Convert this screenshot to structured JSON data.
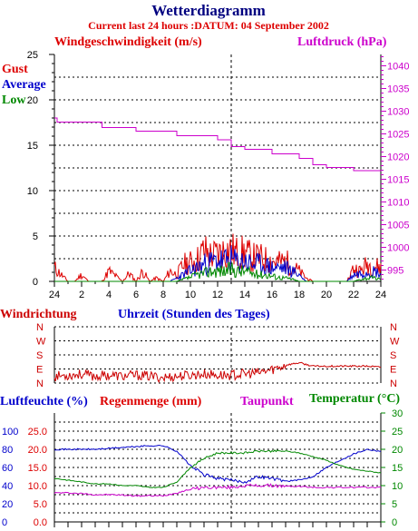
{
  "header": {
    "title": "Wetterdiagramm",
    "subtitle": "Current last 24 hours :DATUM: 04 September 2002"
  },
  "colors": {
    "gust": "#dd0000",
    "average": "#0000cc",
    "low": "#008800",
    "pressure": "#cc00cc",
    "direction": "#cc0000",
    "humidity": "#0000cc",
    "rain": "#dd0000",
    "dewpoint": "#cc00cc",
    "temperature": "#008800",
    "grid": "#000000"
  },
  "chart_data": [
    {
      "type": "line",
      "ylabel": "Windgeschwindigkeit (m/s)",
      "y2label": "Luftdruck (hPa)",
      "xlabel": "Uhrzeit (Stunden des Tages)",
      "legend": [
        "Gust",
        "Average",
        "Low"
      ],
      "ylim": [
        0,
        25
      ],
      "y2lim": [
        992.5,
        1042.5
      ],
      "yticks": [
        "0",
        "5",
        "10",
        "15",
        "20",
        "25"
      ],
      "y2ticks": [
        "995",
        "1000",
        "1005",
        "1010",
        "1015",
        "1020",
        "1025",
        "1030",
        "1035",
        "1040"
      ],
      "xticks": [
        "24",
        "2",
        "4",
        "6",
        "8",
        "10",
        "12",
        "14",
        "16",
        "18",
        "20",
        "22",
        "24"
      ],
      "x": [
        0,
        0.5,
        1,
        1.5,
        2,
        2.5,
        3,
        3.5,
        4,
        4.5,
        5,
        5.5,
        6,
        6.5,
        7,
        7.5,
        8,
        8.5,
        9,
        9.5,
        10,
        10.5,
        11,
        11.5,
        12,
        12.5,
        13,
        13.5,
        14,
        14.5,
        15,
        15.5,
        16,
        16.5,
        17,
        17.5,
        18,
        18.5,
        19,
        19.5,
        20,
        20.5,
        21,
        21.5,
        22,
        22.5,
        23,
        23.5,
        24
      ],
      "series": [
        {
          "name": "Gust",
          "values": [
            2,
            1,
            0,
            0,
            1,
            0,
            0,
            0,
            1.5,
            0.8,
            0,
            1.2,
            0,
            1.5,
            0,
            0.5,
            0,
            1.5,
            1,
            2.5,
            2.8,
            3.2,
            4.5,
            3.8,
            4,
            4.5,
            4.6,
            4,
            4.2,
            3.5,
            3.5,
            3.2,
            3,
            2.8,
            3,
            2.2,
            1.5,
            0.5,
            0,
            0,
            0,
            0,
            0,
            0,
            2,
            1.5,
            2.5,
            2.3,
            2
          ]
        },
        {
          "name": "Average",
          "values": [
            0,
            0,
            0,
            0,
            0,
            0,
            0,
            0,
            0,
            0,
            0,
            0,
            0,
            0,
            0,
            0,
            0,
            0,
            0.5,
            1,
            1.5,
            2,
            2.5,
            2.8,
            3,
            3,
            3.2,
            2.8,
            3,
            2.5,
            2.5,
            2.3,
            2,
            2,
            2,
            1.5,
            1,
            0,
            0,
            0,
            0,
            0,
            0,
            0,
            1,
            1.2,
            1.5,
            1.5,
            1.2
          ]
        },
        {
          "name": "Low",
          "values": [
            0,
            0,
            0,
            0,
            0,
            0,
            0,
            0,
            0,
            0,
            0,
            0,
            0,
            0,
            0,
            0,
            0,
            0,
            0,
            0.3,
            0.6,
            1,
            1.2,
            1.5,
            1.6,
            1.5,
            1.8,
            1.5,
            1.5,
            1.2,
            1,
            1,
            0.8,
            0.6,
            0.5,
            0.3,
            0,
            0,
            0,
            0,
            0,
            0,
            0,
            0,
            0,
            0.3,
            0.5,
            0.5,
            0.3
          ]
        },
        {
          "name": "Luftdruck",
          "axis": "y2",
          "x": [
            0,
            0.2,
            3.5,
            6,
            9,
            12,
            13,
            14,
            16,
            18,
            19,
            20,
            22,
            24
          ],
          "values": [
            1028.5,
            1027.6,
            1026.4,
            1025.6,
            1024.6,
            1023.7,
            1022.2,
            1021.6,
            1020.6,
            1019.6,
            1018.2,
            1017.6,
            1016.9,
            1016.8
          ]
        }
      ]
    },
    {
      "type": "line",
      "title": "Windrichtung",
      "ylim": [
        0,
        5
      ],
      "yticks": [
        "N",
        "W",
        "S",
        "E",
        "N"
      ],
      "x": [
        0,
        1,
        2,
        3,
        4,
        5,
        6,
        7,
        8,
        9,
        10,
        11,
        12,
        13,
        14,
        15,
        16,
        17,
        18,
        19,
        20,
        21,
        22,
        23,
        24
      ],
      "series": [
        {
          "name": "Windrichtung",
          "values": [
            0.6,
            0.7,
            0.8,
            0.6,
            0.7,
            0.6,
            0.7,
            0.6,
            0.5,
            0.6,
            0.7,
            0.8,
            0.7,
            0.7,
            0.8,
            0.9,
            1.2,
            1.6,
            1.8,
            1.5,
            1.5,
            1.5,
            1.5,
            1.5,
            1.4
          ]
        }
      ]
    },
    {
      "type": "line",
      "ylabel": "Luftfeuchte (%)",
      "ylabel2": "Regenmenge (mm)",
      "legend": [
        "Taupunkt",
        "Temperatur (°C)"
      ],
      "ylim": [
        0,
        120
      ],
      "rainticks": [
        "0.0",
        "5.0",
        "10.0",
        "15.0",
        "20.0",
        "25.0"
      ],
      "humticks": [
        "0",
        "20",
        "40",
        "60",
        "80",
        "100"
      ],
      "y2ticks": [
        "0",
        "5",
        "10",
        "15",
        "20",
        "25",
        "30"
      ],
      "x": [
        0,
        1,
        2,
        3,
        4,
        5,
        6,
        7,
        8,
        9,
        10,
        11,
        12,
        13,
        14,
        15,
        16,
        17,
        18,
        19,
        20,
        21,
        22,
        23,
        24
      ],
      "series": [
        {
          "name": "Luftfeuchte",
          "values": [
            80,
            80,
            80,
            80,
            81,
            82,
            83,
            84,
            84,
            78,
            62,
            52,
            48,
            46,
            44,
            50,
            48,
            45,
            46,
            50,
            60,
            68,
            75,
            80,
            78
          ]
        },
        {
          "name": "Temperatur",
          "values": [
            12,
            11.5,
            11,
            10.5,
            10.5,
            10,
            10,
            9.5,
            9.5,
            11,
            15,
            17.5,
            19,
            19,
            19,
            19.5,
            19.5,
            19.5,
            19,
            18,
            17,
            15.5,
            14.5,
            14,
            13.5
          ]
        },
        {
          "name": "Taupunkt",
          "values": [
            8,
            8,
            7.8,
            7.5,
            7.5,
            7.4,
            7.2,
            7.2,
            7.2,
            8,
            9,
            9.5,
            9.5,
            9.5,
            10,
            10,
            10,
            9.8,
            9.8,
            9.5,
            9.5,
            9.5,
            9.5,
            9.5,
            9.5
          ]
        }
      ]
    }
  ]
}
